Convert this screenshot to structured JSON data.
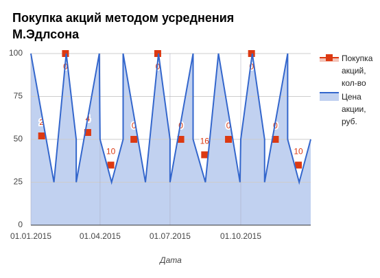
{
  "chart_data": {
    "type": "line",
    "title": "Покупка акций методом усреднения М.Эдлсона",
    "x_label": "Дата",
    "xlim": [
      "01.01.2015",
      "31.12.2015"
    ],
    "xticks": [
      "01.01.2015",
      "01.04.2015",
      "01.07.2015",
      "01.10.2015"
    ],
    "ylim": [
      0,
      100
    ],
    "yticks": [
      0,
      25,
      50,
      75,
      100
    ],
    "grid": true,
    "legend": "right",
    "series": [
      {
        "name": "Покупка акций, кол-во",
        "color": "#dc3912",
        "style": "markers",
        "x": [
          "15.01.2015",
          "15.02.2015",
          "16.03.2015",
          "15.04.2015",
          "15.05.2015",
          "15.06.2015",
          "15.07.2015",
          "15.08.2015",
          "15.09.2015",
          "15.10.2015",
          "15.11.2015",
          "15.12.2015"
        ],
        "values": [
          52,
          100,
          54,
          35,
          50,
          100,
          50,
          41,
          50,
          100,
          50,
          35
        ],
        "quantities": [
          2,
          0,
          4,
          10,
          0,
          0,
          0,
          16,
          0,
          0,
          0,
          10
        ]
      },
      {
        "name": "Цена акции, руб.",
        "color": "#3366cc",
        "style": "area",
        "x": [
          "01.01.2015",
          "31.01.2015",
          "16.02.2015",
          "01.03.2015",
          "01.03.2015",
          "31.03.2015",
          "01.04.2015",
          "16.04.2015",
          "01.05.2015",
          "01.05.2015",
          "30.05.2015",
          "16.06.2015",
          "01.07.2015",
          "01.07.2015",
          "31.07.2015",
          "31.07.2015",
          "16.08.2015",
          "02.09.2015",
          "30.09.2015",
          "01.10.2015",
          "16.10.2015",
          "01.11.2015",
          "01.11.2015",
          "01.12.2015",
          "01.12.2015",
          "16.12.2015",
          "31.12.2015"
        ],
        "values": [
          100,
          25,
          100,
          50,
          25,
          100,
          50,
          25,
          50,
          100,
          25,
          100,
          50,
          25,
          100,
          50,
          25,
          100,
          25,
          50,
          100,
          50,
          25,
          100,
          50,
          25,
          50
        ]
      }
    ]
  }
}
